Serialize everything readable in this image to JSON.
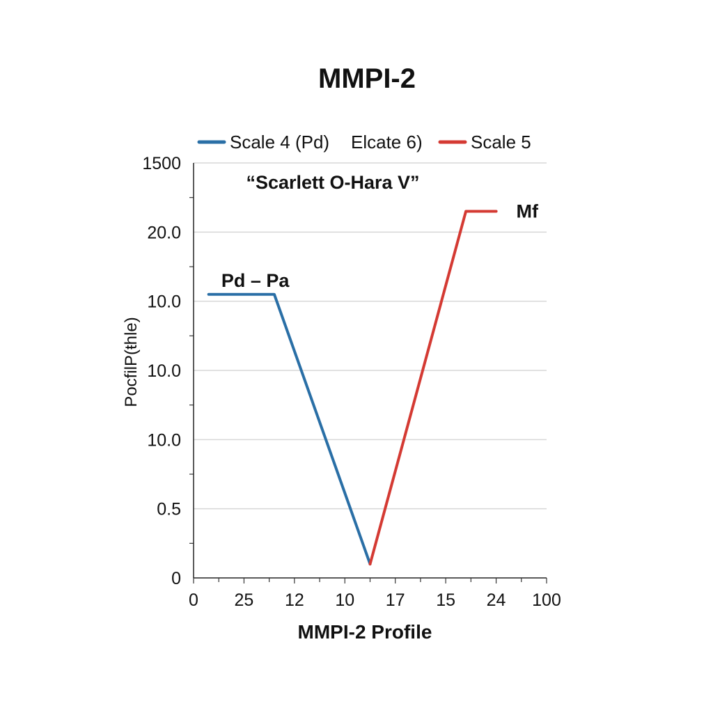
{
  "chart_data": {
    "type": "line",
    "title": "MMPI-2",
    "subtitle": "“Scarlett O-Hara V”",
    "xlabel": "MMPI-2 Profile",
    "ylabel": "PocfilP(ŧhle)",
    "x_tick_labels": [
      "0",
      "25",
      "12",
      "10",
      "17",
      "15",
      "24",
      "100"
    ],
    "y_tick_labels": [
      "0",
      "0.5",
      "10.0",
      "10.0",
      "10.0",
      "20.0",
      "1500"
    ],
    "grid": true,
    "legend_position": "top",
    "legend": [
      {
        "name": "Scale 4 (Pd)",
        "color": "#2a6fa6",
        "swatch": true
      },
      {
        "name": "Elcate 6)",
        "color": "#2a6fa6",
        "swatch": false
      },
      {
        "name": "Scale 5",
        "color": "#d43a33",
        "swatch": true
      }
    ],
    "series": [
      {
        "name": "Scale 4 (Pd)",
        "color": "#2a6fa6",
        "points": [
          [
            0.3,
            4.1
          ],
          [
            1.6,
            4.1
          ],
          [
            3.5,
            0.2
          ]
        ]
      },
      {
        "name": "Scale 5",
        "color": "#d43a33",
        "points": [
          [
            3.5,
            0.2
          ],
          [
            5.4,
            5.3
          ],
          [
            6.0,
            5.3
          ]
        ]
      }
    ],
    "annotations": [
      {
        "text": "Pd – Pa",
        "x": 0.55,
        "y": 4.3
      },
      {
        "text": "Mf",
        "x": 6.4,
        "y": 5.3
      }
    ]
  }
}
